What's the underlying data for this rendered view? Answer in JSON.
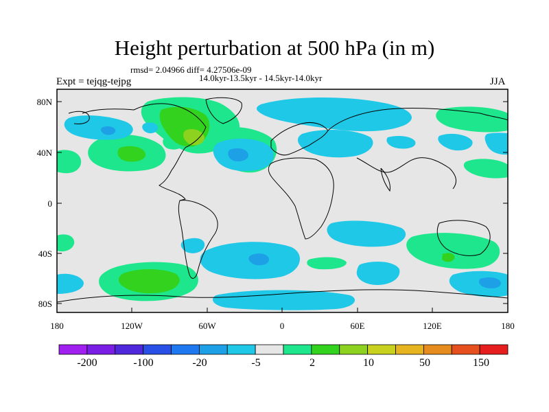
{
  "title": "Height perturbation at 500 hPa (in m)",
  "stats": "rmsd= 2.04966 diff= 4.27506e-09",
  "subtitle": "14.0kyr-13.5kyr - 14.5kyr-14.0kyr",
  "experiment": "Expt = tejqg-tejpg",
  "season": "JJA",
  "lat_labels": [
    "80N",
    "40N",
    "0",
    "40S",
    "80S"
  ],
  "lon_labels": [
    "180",
    "120W",
    "60W",
    "0",
    "60E",
    "120E",
    "180"
  ],
  "map": {
    "background_color": "#e6e6e6",
    "coastline_color": "#000000",
    "lon_range": [
      -180,
      180
    ],
    "lat_range": [
      -90,
      90
    ]
  },
  "colorbar": {
    "colors": [
      "#a020f0",
      "#7a1ee6",
      "#5028dc",
      "#2850e6",
      "#1e78f0",
      "#1ea0e6",
      "#1ec8e6",
      "#e6e6e6",
      "#1ee68c",
      "#32d21e",
      "#8cd21e",
      "#c8d21e",
      "#e6b41e",
      "#e68c1e",
      "#e6501e",
      "#e61e1e"
    ],
    "labels": [
      "-200",
      "-100",
      "-20",
      "-5",
      "2",
      "10",
      "50",
      "150"
    ]
  },
  "legend_colors": {
    "light_green": "#1ee68c",
    "green": "#32d21e",
    "lime": "#8cd21e",
    "light_blue": "#1ec8e6",
    "blue": "#1ea0e6"
  }
}
